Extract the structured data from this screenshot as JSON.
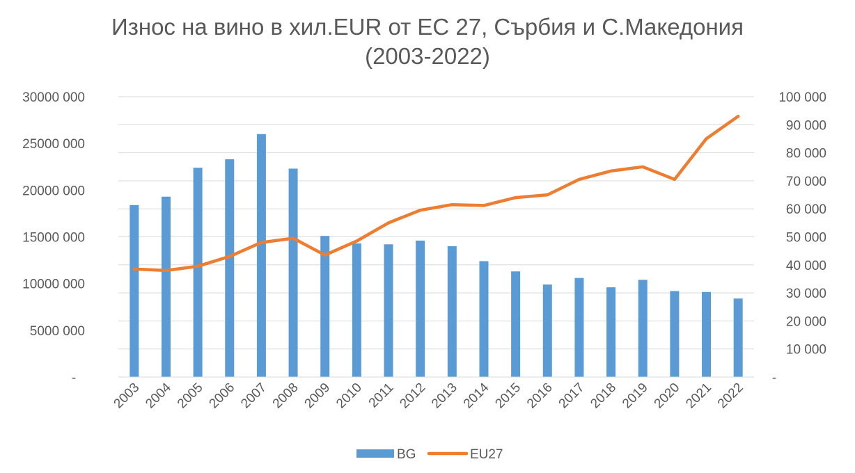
{
  "title_lines": [
    "Износ на вино в хил.EUR от ЕС 27, Сърбия и С.Македония",
    "(2003-2022)"
  ],
  "chart_data": {
    "type": "bar",
    "title": "Износ на вино в хил.EUR от ЕС 27, Сърбия и С.Македония (2003-2022)",
    "categories": [
      "2003",
      "2004",
      "2005",
      "2006",
      "2007",
      "2008",
      "2009",
      "2010",
      "2011",
      "2012",
      "2013",
      "2014",
      "2015",
      "2016",
      "2017",
      "2018",
      "2019",
      "2020",
      "2021",
      "2022"
    ],
    "series": [
      {
        "name": "BG",
        "type": "bar",
        "axis": "left",
        "color": "#5B9BD5",
        "values": [
          18400000,
          19300000,
          22400000,
          23300000,
          26000000,
          22300000,
          15100000,
          14300000,
          14200000,
          14600000,
          14000000,
          12400000,
          11300000,
          9900000,
          10600000,
          9600000,
          10400000,
          9200000,
          9100000,
          8400000
        ]
      },
      {
        "name": "EU27",
        "type": "line",
        "axis": "right",
        "color": "#ED7D31",
        "values": [
          38500,
          38000,
          39500,
          43000,
          48000,
          49500,
          43500,
          48500,
          55000,
          59500,
          61500,
          61200,
          64000,
          65000,
          70500,
          73500,
          75000,
          70500,
          85000,
          93000
        ]
      }
    ],
    "y_left": {
      "ylim": [
        0,
        30000000
      ],
      "ticks": [
        0,
        5000000,
        10000000,
        15000000,
        20000000,
        25000000,
        30000000
      ],
      "tick_labels": [
        "-",
        "5000 000",
        "10000 000",
        "15000 000",
        "20000 000",
        "25000 000",
        "30000 000"
      ]
    },
    "y_right": {
      "ylim": [
        0,
        100000
      ],
      "ticks": [
        0,
        10000,
        20000,
        30000,
        40000,
        50000,
        60000,
        70000,
        80000,
        90000,
        100000
      ],
      "tick_labels": [
        "-",
        "10 000",
        "20 000",
        "30 000",
        "40 000",
        "50 000",
        "60 000",
        "70 000",
        "80 000",
        "90 000",
        "100 000"
      ]
    },
    "grid": true,
    "legend": {
      "position": "bottom",
      "entries": [
        "BG",
        "EU27"
      ]
    },
    "gridline_color": "#D9D9D9"
  }
}
